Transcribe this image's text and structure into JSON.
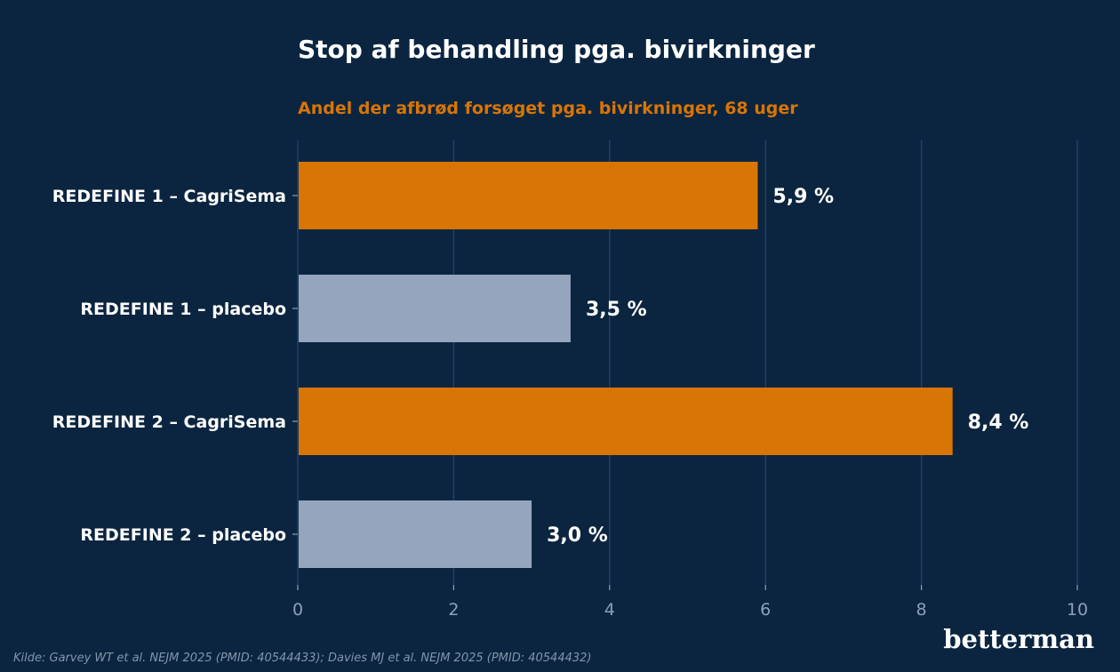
{
  "chart_data": {
    "type": "bar",
    "orientation": "horizontal",
    "title": "Stop af behandling pga. bivirkninger",
    "subtitle": "Andel der afbrød forsøget pga. bivirkninger, 68 uger",
    "categories": [
      "REDEFINE 1 – CagriSema",
      "REDEFINE 1 – placebo",
      "REDEFINE 2 – CagriSema",
      "REDEFINE 2 – placebo"
    ],
    "values": [
      5.9,
      3.5,
      8.4,
      3.0
    ],
    "value_labels": [
      "5,9 %",
      "3,5 %",
      "8,4 %",
      "3,0 %"
    ],
    "bar_colors": [
      "#d97504",
      "#94a5bd",
      "#d97504",
      "#94a5bd"
    ],
    "xlim": [
      0,
      10
    ],
    "xticks": [
      0,
      2,
      4,
      6,
      8,
      10
    ],
    "xtick_labels": [
      "0",
      "2",
      "4",
      "6",
      "8",
      "10"
    ],
    "grid": "vertical",
    "legend": "none"
  },
  "colors": {
    "background": "#0b2540",
    "accent": "#d97504",
    "placebo": "#94a5bd",
    "grid": "#1e4166",
    "tick_text": "#8da0b8"
  },
  "source": "Kilde: Garvey WT et al. NEJM 2025 (PMID: 40544433); Davies MJ et al. NEJM 2025 (PMID: 40544432)",
  "brand": "betterman"
}
